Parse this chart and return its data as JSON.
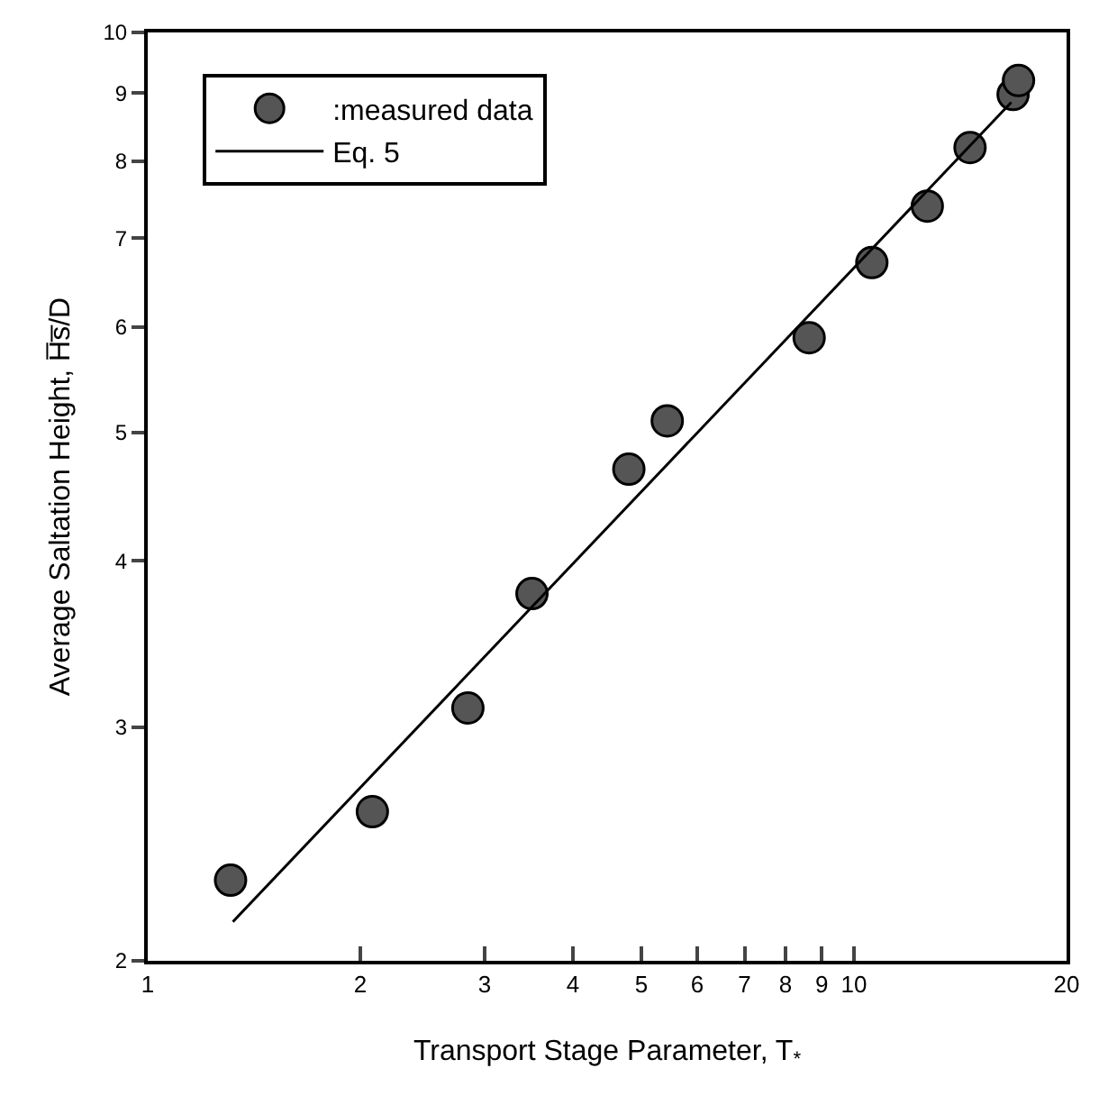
{
  "chart_data": {
    "type": "scatter",
    "xlabel": "Transport Stage Parameter, T$_{*}$",
    "ylabel": "Average Saltation Height, H̅s̅/D",
    "log": "xy",
    "xlim": [
      1,
      20
    ],
    "ylim": [
      2,
      10
    ],
    "xticks": [
      1,
      2,
      3,
      4,
      5,
      6,
      7,
      8,
      9,
      10,
      20
    ],
    "yticks": [
      2,
      3,
      4,
      5,
      6,
      7,
      8,
      9,
      10
    ],
    "grid": false,
    "legend": "top left",
    "marker": "circle",
    "series": [
      {
        "name": ":measured data",
        "color": "#555555",
        "x": [
          1.31,
          2.08,
          2.84,
          3.5,
          4.8,
          5.44,
          8.64,
          10.6,
          12.7,
          14.6,
          16.8,
          17.1
        ],
        "values": [
          2.3,
          2.59,
          3.1,
          3.78,
          4.69,
          5.1,
          5.89,
          6.71,
          7.4,
          8.19,
          8.98,
          9.2
        ]
      },
      {
        "name": "Eq. 5",
        "type": "line",
        "marker": "none",
        "color": "#000000",
        "x": [
          1.32,
          16.7
        ],
        "values": [
          2.14,
          8.86
        ]
      }
    ]
  }
}
